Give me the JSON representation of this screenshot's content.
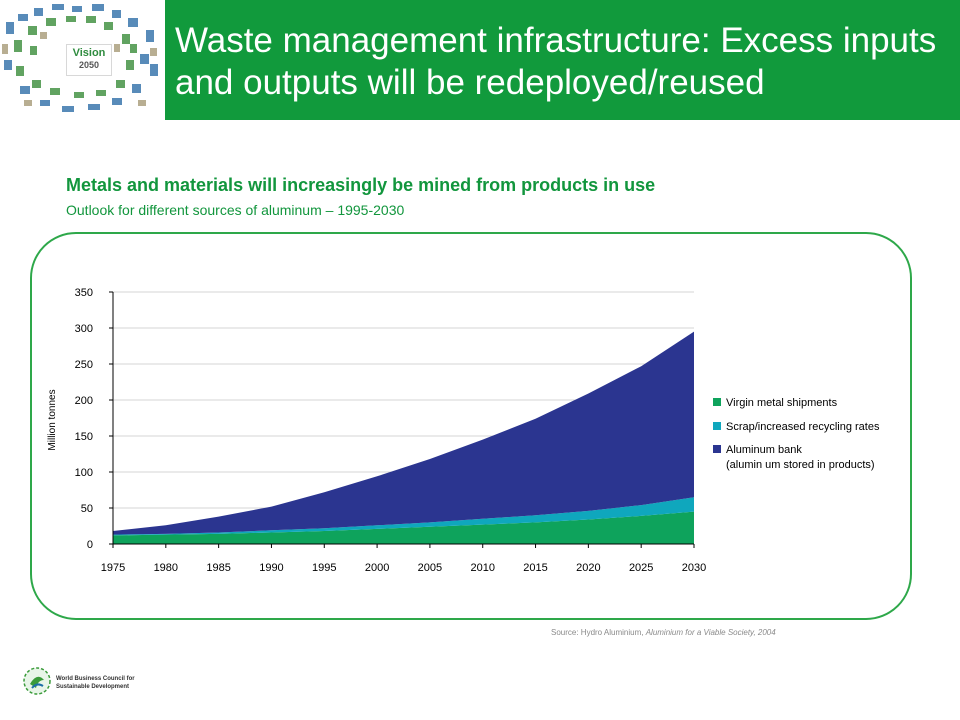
{
  "header": {
    "title": "Waste management infrastructure: Excess inputs and outputs will be redeployed/reused",
    "logo": {
      "word": "Vision",
      "year": "2050"
    }
  },
  "subtitle": "Metals and materials will increasingly be mined from products in use",
  "caption": "Outlook for different sources of aluminum – 1995-2030",
  "source": {
    "prefix": "Source: Hydro Aluminium, ",
    "work": "Aluminium for a Viable Society, 2004"
  },
  "footer": {
    "org_line1": "World Business Council for",
    "org_line2": "Sustainable Development",
    "icon": "wbcsd-leaf-icon"
  },
  "colors": {
    "header_green": "#119a3c",
    "text_green": "#12963d",
    "virgin": "#0ea35c",
    "scrap": "#0fa7bd",
    "bank": "#2b3590",
    "panel_border": "#2ea84a"
  },
  "chart_data": {
    "type": "area",
    "stacked": true,
    "ylabel": "Million  tonnes",
    "xlabel": "",
    "ylim": [
      0,
      350
    ],
    "yticks": [
      0,
      50,
      100,
      150,
      200,
      250,
      300,
      350
    ],
    "xticks": [
      1975,
      1980,
      1985,
      1990,
      1995,
      2000,
      2005,
      2010,
      2015,
      2020,
      2025,
      2030
    ],
    "grid": true,
    "legend_placement": "right",
    "x": [
      1975,
      1980,
      1985,
      1990,
      1995,
      2000,
      2005,
      2010,
      2015,
      2020,
      2025,
      2030
    ],
    "series": [
      {
        "name": "Virgin metal shipments",
        "color": "#0ea35c",
        "values": [
          12,
          13,
          14,
          16,
          18,
          21,
          24,
          27,
          30,
          34,
          39,
          45
        ]
      },
      {
        "name": "Scrap/increased recycling rates",
        "color": "#0fa7bd",
        "values": [
          1,
          1,
          2,
          3,
          4,
          5,
          6,
          8,
          10,
          12,
          15,
          20
        ]
      },
      {
        "name": "Aluminum  bank",
        "name_line2": "(alumin um stored in products)",
        "color": "#2b3590",
        "values": [
          5,
          12,
          22,
          33,
          50,
          68,
          88,
          110,
          134,
          163,
          193,
          230
        ]
      }
    ]
  }
}
